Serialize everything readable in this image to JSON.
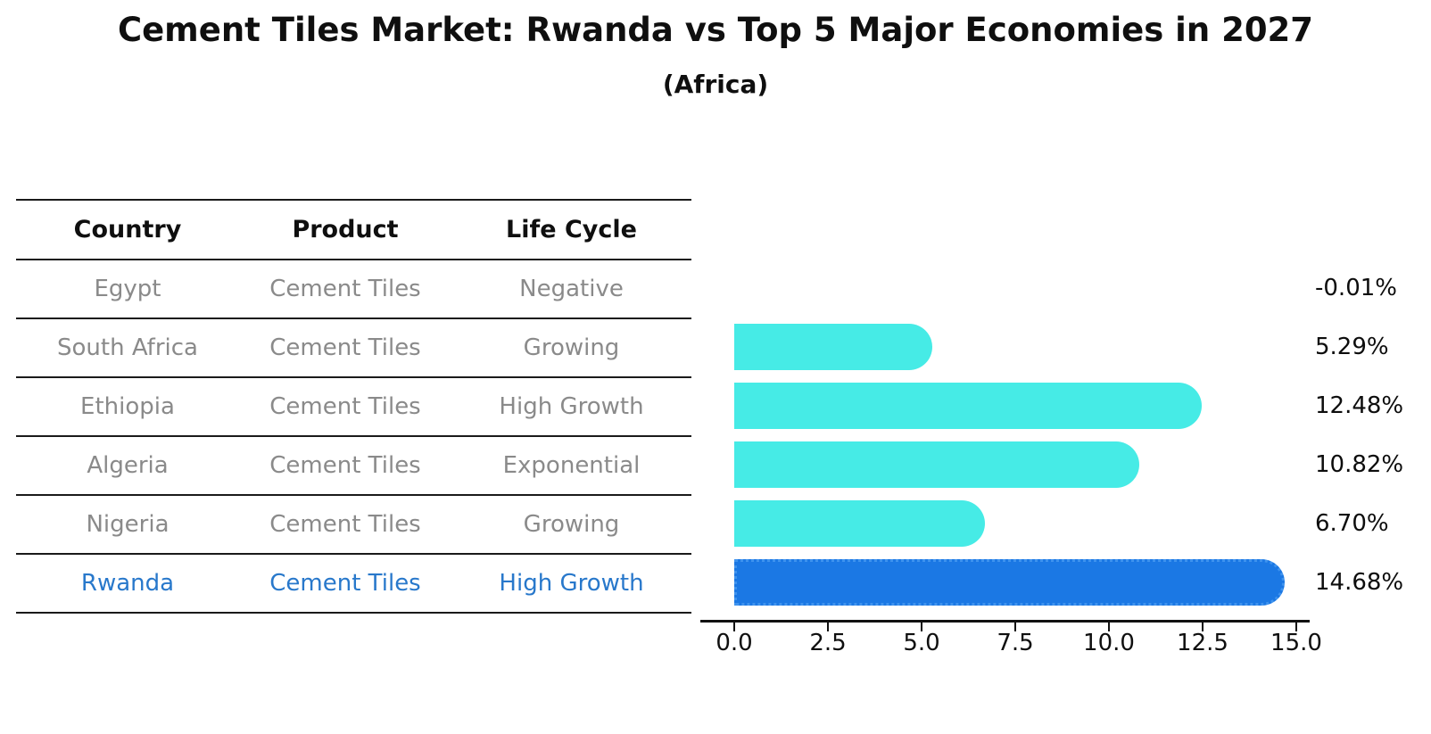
{
  "title": "Cement Tiles Market: Rwanda vs Top 5 Major Economies in 2027",
  "subtitle": "(Africa)",
  "table": {
    "headers": [
      "Country",
      "Product",
      "Life Cycle"
    ],
    "rows": [
      {
        "country": "Egypt",
        "product": "Cement Tiles",
        "life_cycle": "Negative",
        "highlight": false
      },
      {
        "country": "South Africa",
        "product": "Cement Tiles",
        "life_cycle": "Growing",
        "highlight": false
      },
      {
        "country": "Ethiopia",
        "product": "Cement Tiles",
        "life_cycle": "High Growth",
        "highlight": false
      },
      {
        "country": "Algeria",
        "product": "Cement Tiles",
        "life_cycle": "Exponential",
        "highlight": false
      },
      {
        "country": "Nigeria",
        "product": "Cement Tiles",
        "life_cycle": "Growing",
        "highlight": false
      },
      {
        "country": "Rwanda",
        "product": "Cement Tiles",
        "life_cycle": "High Growth",
        "highlight": true
      }
    ]
  },
  "chart_data": {
    "type": "bar",
    "orientation": "horizontal",
    "title": "Cement Tiles Market: Rwanda vs Top 5 Major Economies in 2027 (Africa)",
    "categories": [
      "Egypt",
      "South Africa",
      "Ethiopia",
      "Algeria",
      "Nigeria",
      "Rwanda"
    ],
    "values": [
      -0.01,
      5.29,
      12.48,
      10.82,
      6.7,
      14.68
    ],
    "value_labels": [
      "-0.01%",
      "5.29%",
      "12.48%",
      "10.82%",
      "6.70%",
      "14.68%"
    ],
    "x_ticks": [
      0.0,
      2.5,
      5.0,
      7.5,
      10.0,
      12.5,
      15.0
    ],
    "xlim": [
      0,
      15.4
    ],
    "grid": false,
    "legend": "none",
    "bar_color": "#46ebe6",
    "highlight_index": 5,
    "highlight_color": "#1b78e4",
    "highlight_border_color": "#3f93ee",
    "highlight_text_color": "#2878cb",
    "table_text_color": "#8a8a8a"
  }
}
